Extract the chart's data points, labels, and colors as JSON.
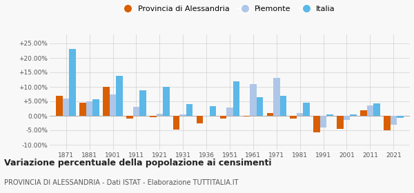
{
  "years": [
    1871,
    1881,
    1901,
    1911,
    1921,
    1931,
    1936,
    1951,
    1961,
    1971,
    1981,
    1991,
    2001,
    2011,
    2021
  ],
  "alessandria": [
    7.0,
    4.5,
    10.0,
    -1.0,
    -0.5,
    -4.8,
    -2.5,
    -1.0,
    -0.2,
    1.0,
    -1.0,
    -5.8,
    -4.5,
    2.0,
    -5.0
  ],
  "piemonte": [
    6.0,
    5.0,
    7.5,
    3.0,
    0.8,
    0.5,
    -0.3,
    2.8,
    11.0,
    13.0,
    1.0,
    -4.0,
    -1.5,
    3.5,
    -3.0
  ],
  "italia": [
    23.0,
    5.8,
    13.8,
    8.8,
    10.0,
    4.0,
    3.3,
    12.0,
    6.5,
    6.8,
    4.5,
    0.5,
    0.5,
    4.2,
    -0.8
  ],
  "color_alessandria": "#d95f02",
  "color_piemonte": "#aec6e8",
  "color_italia": "#5bb8e8",
  "title": "Variazione percentuale della popolazione ai censimenti",
  "subtitle": "PROVINCIA DI ALESSANDRIA - Dati ISTAT - Elaborazione TUTTITALIA.IT",
  "ylim": [
    -12,
    28
  ],
  "yticks": [
    -10,
    -5,
    0,
    5,
    10,
    15,
    20,
    25
  ],
  "ytick_labels": [
    "-10.00%",
    "-5.00%",
    "0.00%",
    "+5.00%",
    "+10.00%",
    "+15.00%",
    "+20.00%",
    "+25.00%"
  ],
  "bar_width": 0.28,
  "background_color": "#f8f8f8",
  "grid_color": "#d0d0d0"
}
